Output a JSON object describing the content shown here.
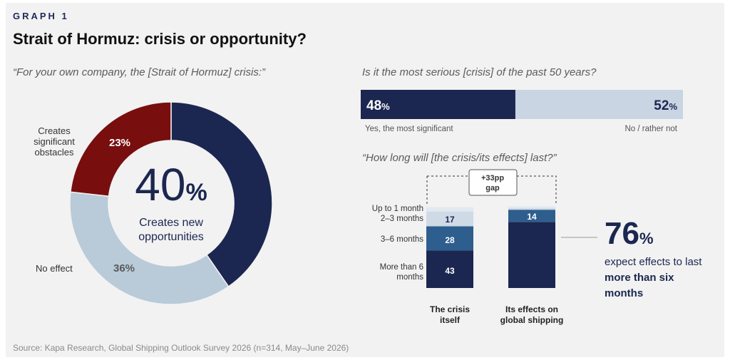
{
  "header": {
    "graph_label": "GRAPH 1",
    "title": "Strait of Hormuz: crisis or opportunity?"
  },
  "donut": {
    "question": "“For your own company, the [Strait of Hormuz] crisis:”",
    "center_value": "40",
    "center_unit": "%",
    "center_caption_line1": "Creates new",
    "center_caption_line2": "opportunities",
    "labels": {
      "obstacles_line1": "Creates",
      "obstacles_line2": "significant",
      "obstacles_line3": "obstacles",
      "no_effect": "No effect"
    },
    "slice_labels": {
      "obstacles": "23%",
      "no_effect": "36%"
    }
  },
  "serious": {
    "question": "Is it the most serious [crisis] of the past 50 years?",
    "yes_value": "48",
    "no_value": "52",
    "unit": "%",
    "yes_label": "Yes, the most significant",
    "no_label": "No / rather not"
  },
  "duration": {
    "question": "“How long will [the crisis/its effects] last?”",
    "gap_line1": "+33pp",
    "gap_line2": "gap",
    "row_labels": {
      "up_to_1": "Up to 1 month",
      "m2_3": "2–3 months",
      "m3_6": "3–6 months",
      "m6_line1": "More than 6",
      "m6_line2": "months"
    },
    "bar_labels": {
      "crisis_m2_3": "17",
      "crisis_m3_6": "28",
      "crisis_m6": "43",
      "effects_m2_3": "14"
    },
    "x_labels": {
      "crisis_line1": "The crisis",
      "crisis_line2": "itself",
      "effects_line1": "Its effects on",
      "effects_line2": "global shipping"
    },
    "callout": {
      "value": "76",
      "unit": "%",
      "line1": "expect effects to last",
      "line2": "more than six",
      "line3": "months"
    }
  },
  "source": "Source: Kapa Research, Global Shipping Outlook Survey 2026 (n=314, May–June 2026)",
  "colors": {
    "navy": "#1b2750",
    "red": "#780e0e",
    "lightblue": "#b9cad8",
    "midblue": "#2e5e8e",
    "paleblue": "#cfdae7",
    "verypale": "#e3e9f1",
    "barlight": "#c9d5e3"
  },
  "chart_data": [
    {
      "type": "pie",
      "title": "“For your own company, the [Strait of Hormuz] crisis:”",
      "categories": [
        "Creates new opportunities",
        "Creates significant obstacles",
        "No effect"
      ],
      "values": [
        40,
        23,
        36
      ],
      "unit": "%"
    },
    {
      "type": "bar",
      "orientation": "horizontal-stacked",
      "title": "Is it the most serious [crisis] of the past 50 years?",
      "categories": [
        "Yes, the most significant",
        "No / rather not"
      ],
      "values": [
        48,
        52
      ],
      "unit": "%"
    },
    {
      "type": "bar",
      "orientation": "vertical-stacked",
      "title": "“How long will [the crisis/its effects] last?”",
      "categories": [
        "The crisis itself",
        "Its effects on global shipping"
      ],
      "series": [
        {
          "name": "More than 6 months",
          "values": [
            43,
            76
          ]
        },
        {
          "name": "3–6 months",
          "values": [
            28,
            14
          ]
        },
        {
          "name": "2–3 months",
          "values": [
            17,
            2
          ]
        },
        {
          "name": "Up to 1 month",
          "values": [
            5,
            2
          ]
        }
      ],
      "unit": "%"
    }
  ]
}
